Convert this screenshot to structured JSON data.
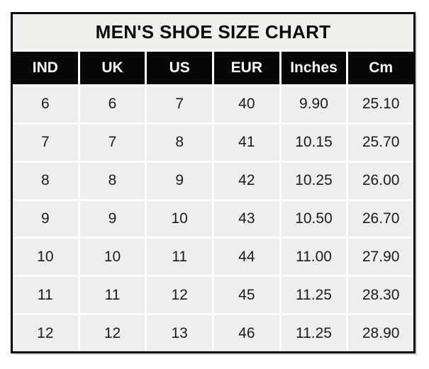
{
  "title": "MEN'S SHOE SIZE CHART",
  "table": {
    "headers": [
      "IND",
      "UK",
      "US",
      "EUR",
      "Inches",
      "Cm"
    ],
    "rows": [
      [
        "6",
        "6",
        "7",
        "40",
        "9.90",
        "25.10"
      ],
      [
        "7",
        "7",
        "8",
        "41",
        "10.15",
        "25.70"
      ],
      [
        "8",
        "8",
        "9",
        "42",
        "10.25",
        "26.00"
      ],
      [
        "9",
        "9",
        "10",
        "43",
        "10.50",
        "26.70"
      ],
      [
        "10",
        "10",
        "11",
        "44",
        "11.00",
        "27.90"
      ],
      [
        "11",
        "11",
        "12",
        "45",
        "11.25",
        "28.30"
      ],
      [
        "12",
        "12",
        "13",
        "46",
        "11.25",
        "28.90"
      ]
    ]
  },
  "chart_data": {
    "type": "table",
    "title": "MEN'S SHOE SIZE CHART",
    "columns": [
      "IND",
      "UK",
      "US",
      "EUR",
      "Inches",
      "Cm"
    ],
    "rows": [
      [
        6,
        6,
        7,
        40,
        9.9,
        25.1
      ],
      [
        7,
        7,
        8,
        41,
        10.15,
        25.7
      ],
      [
        8,
        8,
        9,
        42,
        10.25,
        26.0
      ],
      [
        9,
        9,
        10,
        43,
        10.5,
        26.7
      ],
      [
        10,
        10,
        11,
        44,
        11.0,
        27.9
      ],
      [
        11,
        11,
        12,
        45,
        11.25,
        28.3
      ],
      [
        12,
        12,
        13,
        46,
        11.25,
        28.9
      ]
    ],
    "layout": {
      "grid_lines": "white",
      "outer_border": "#060606",
      "header_bg": "#070707",
      "header_text": "#ffffff",
      "cell_bg": "#eeeeee",
      "title_bg": "#efefed",
      "text_color": "#1c1c1c"
    }
  }
}
